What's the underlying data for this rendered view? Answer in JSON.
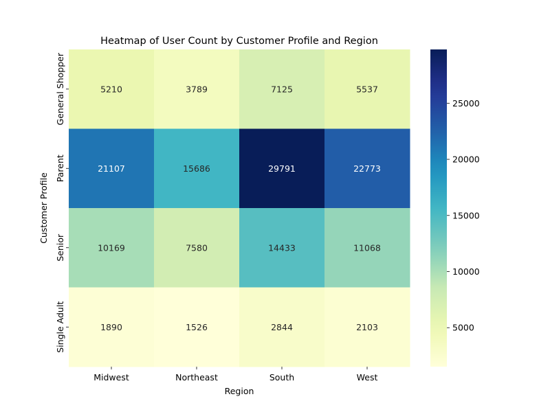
{
  "chart_data": {
    "type": "heatmap",
    "title": "Heatmap of User Count by Customer Profile and Region",
    "xlabel": "Region",
    "ylabel": "Customer Profile",
    "x_categories": [
      "Midwest",
      "Northeast",
      "South",
      "West"
    ],
    "y_categories": [
      "General Shopper",
      "Parent",
      "Senior",
      "Single Adult"
    ],
    "values": [
      [
        5210,
        3789,
        7125,
        5537
      ],
      [
        21107,
        15686,
        29791,
        22773
      ],
      [
        10169,
        7580,
        14433,
        11068
      ],
      [
        1890,
        1526,
        2844,
        2103
      ]
    ],
    "colormap": "YlGnBu",
    "colorbar": {
      "min": 1526,
      "max": 29791,
      "ticks": [
        5000,
        10000,
        15000,
        20000,
        25000
      ]
    },
    "cell_labels": true,
    "legend": "colorbar-right"
  }
}
